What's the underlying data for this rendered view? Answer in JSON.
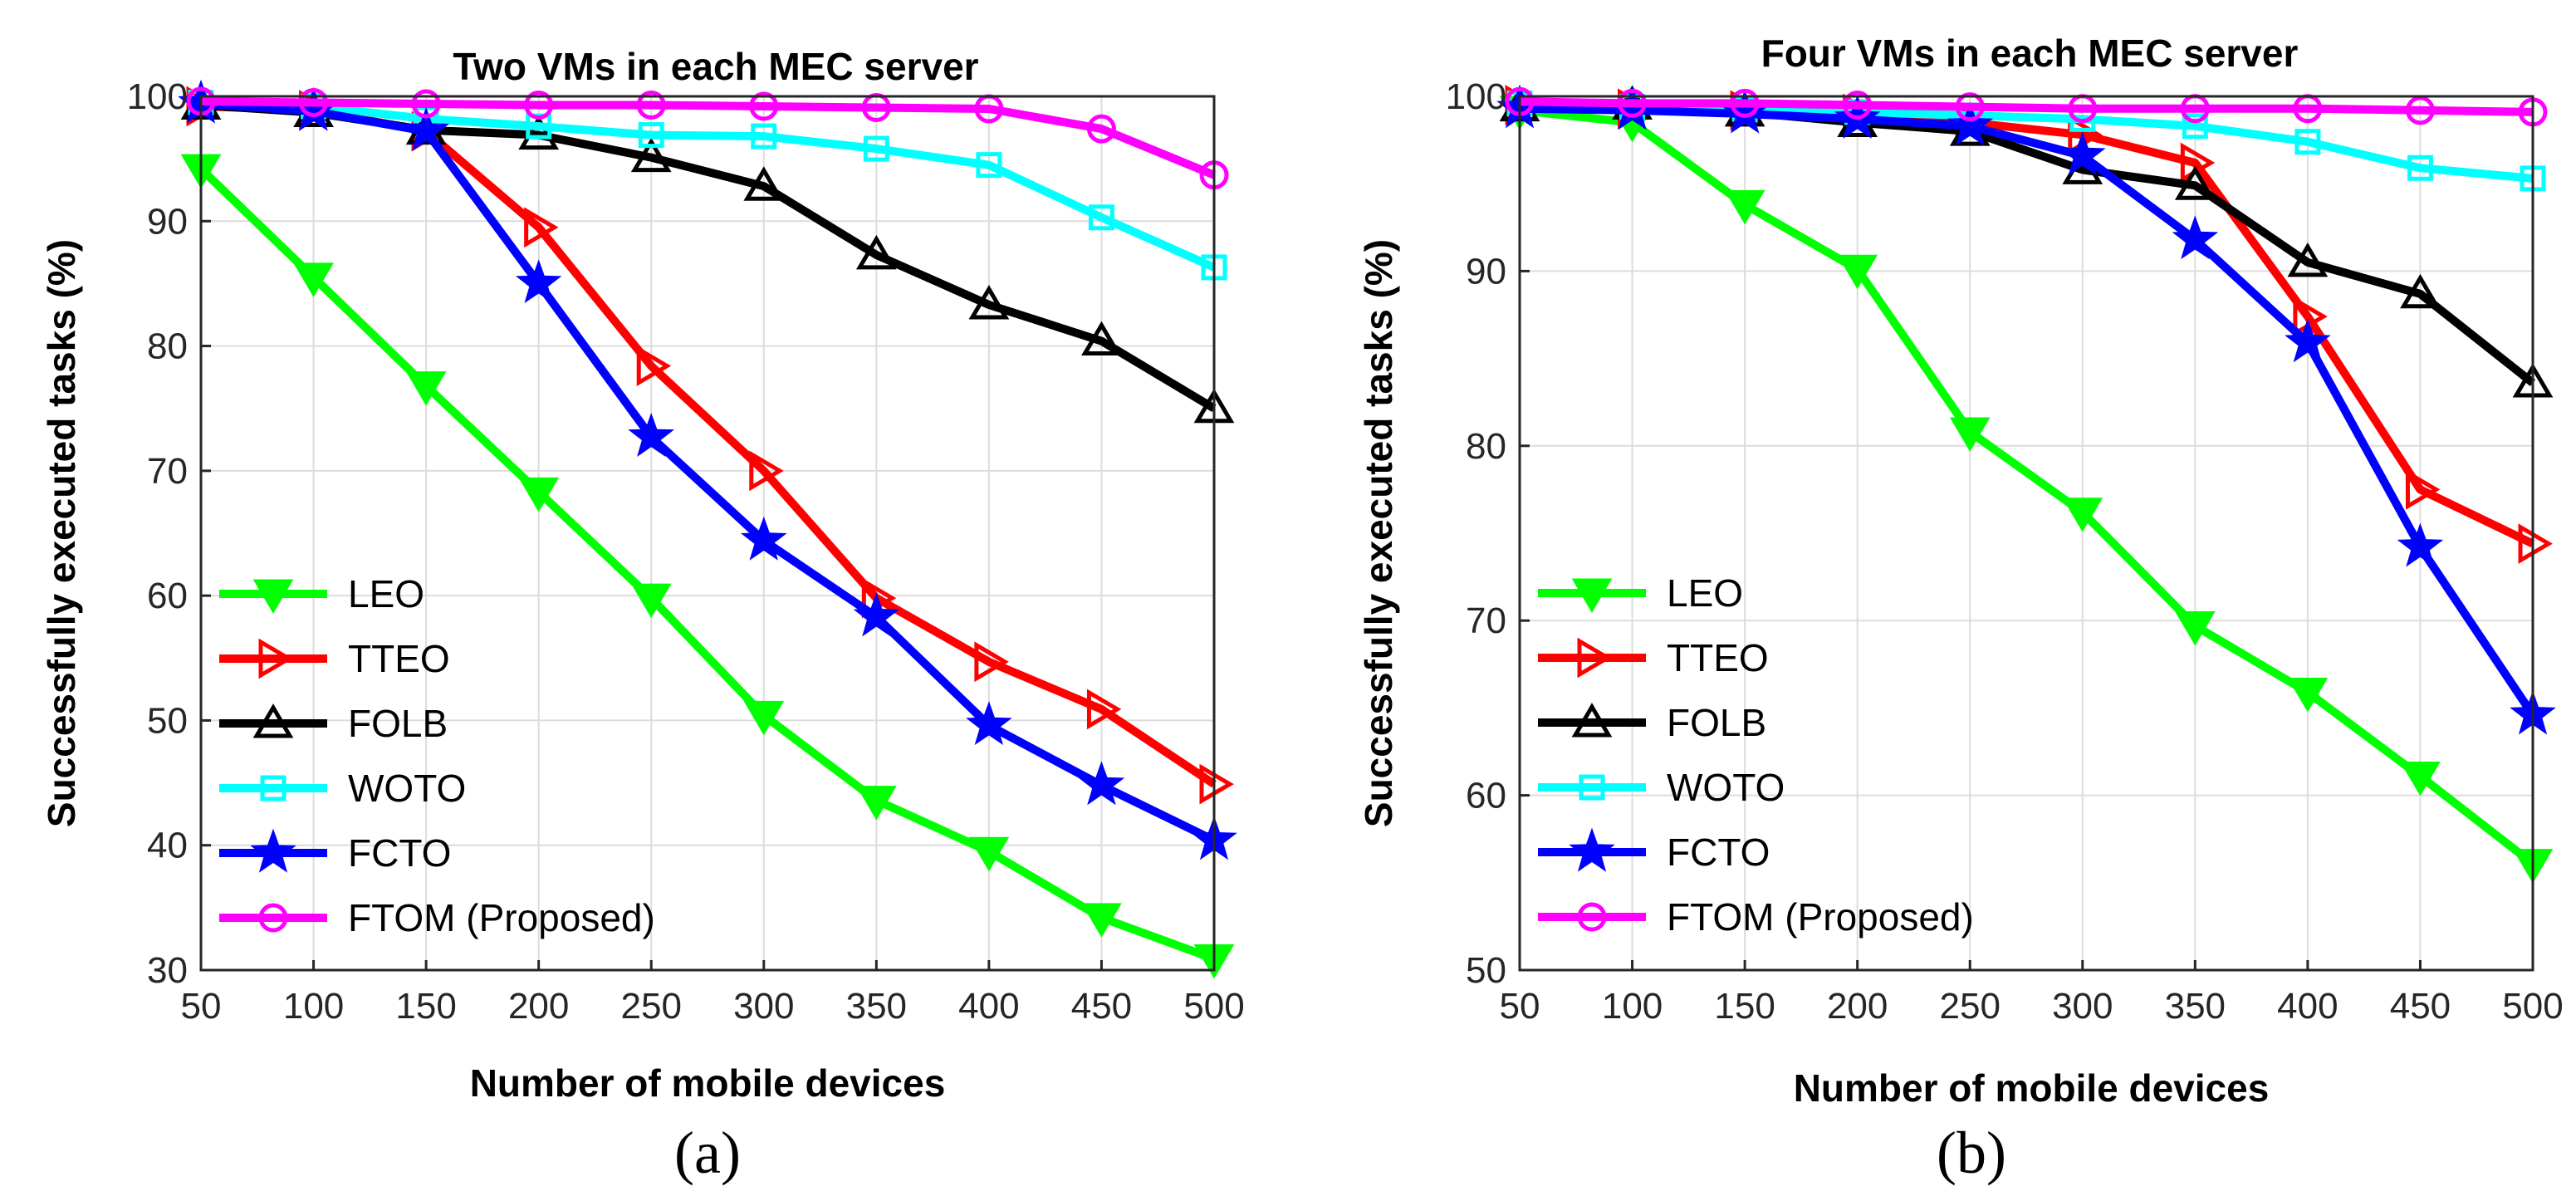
{
  "colors": {
    "LEO": "#00ff00",
    "TTEO": "#ff0000",
    "FOLB": "#000000",
    "WOTO": "#00ffff",
    "FCTO": "#0000ff",
    "FTOM (Proposed)": "#ff00ff"
  },
  "markers": {
    "LEO": "triangle-down",
    "TTEO": "triangle-right",
    "FOLB": "triangle-up",
    "WOTO": "square",
    "FCTO": "star",
    "FTOM (Proposed)": "circle"
  },
  "chart_data": [
    {
      "type": "line",
      "panel_label": "(a)",
      "title": "Two VMs in each MEC server",
      "xlabel": "Number of mobile devices",
      "ylabel": "Successfully executed tasks (%)",
      "x": [
        50,
        100,
        150,
        200,
        250,
        300,
        350,
        400,
        450,
        500
      ],
      "xlim": [
        50,
        500
      ],
      "ylim": [
        30,
        100
      ],
      "xticks": [
        "50",
        "100",
        "150",
        "200",
        "250",
        "300",
        "350",
        "400",
        "450",
        "500"
      ],
      "yticks": [
        "30",
        "40",
        "50",
        "60",
        "70",
        "80",
        "90",
        "100"
      ],
      "ytick_values": [
        30,
        40,
        50,
        60,
        70,
        80,
        90,
        100
      ],
      "grid": true,
      "legend_position": "lower-left",
      "series": [
        {
          "name": "LEO",
          "values": [
            94.2,
            85.5,
            76.8,
            68.3,
            59.8,
            50.4,
            43.6,
            39.5,
            34.2,
            30.9
          ]
        },
        {
          "name": "TTEO",
          "values": [
            99.2,
            98.9,
            97.2,
            89.5,
            78.4,
            70.0,
            59.8,
            54.7,
            50.9,
            44.9
          ]
        },
        {
          "name": "FOLB",
          "values": [
            99.3,
            98.7,
            97.3,
            96.9,
            95.1,
            92.8,
            87.3,
            83.3,
            80.4,
            75.0
          ]
        },
        {
          "name": "WOTO",
          "values": [
            99.5,
            99.2,
            98.2,
            97.6,
            96.9,
            96.8,
            95.8,
            94.5,
            90.3,
            86.3
          ]
        },
        {
          "name": "FCTO",
          "values": [
            99.4,
            98.8,
            97.2,
            85.0,
            72.7,
            64.4,
            58.3,
            49.6,
            44.8,
            40.4
          ]
        },
        {
          "name": "FTOM (Proposed)",
          "values": [
            99.6,
            99.5,
            99.4,
            99.3,
            99.3,
            99.2,
            99.1,
            99.0,
            97.4,
            93.7
          ]
        }
      ]
    },
    {
      "type": "line",
      "panel_label": "(b)",
      "title": "Four VMs in each MEC server",
      "xlabel": "Number of mobile devices",
      "ylabel": "Successfully executed tasks (%)",
      "x": [
        50,
        100,
        150,
        200,
        250,
        300,
        350,
        400,
        450,
        500
      ],
      "xlim": [
        50,
        500
      ],
      "ylim": [
        50,
        100
      ],
      "xticks": [
        "50",
        "100",
        "150",
        "200",
        "250",
        "300",
        "350",
        "400",
        "450",
        "500"
      ],
      "yticks": [
        "50",
        "60",
        "70",
        "80",
        "90",
        "100"
      ],
      "ytick_values": [
        50,
        60,
        70,
        80,
        90,
        100
      ],
      "grid": true,
      "legend_position": "lower-left",
      "series": [
        {
          "name": "LEO",
          "values": [
            99.2,
            98.5,
            93.8,
            90.1,
            80.8,
            76.2,
            69.7,
            65.9,
            61.1,
            56.1
          ]
        },
        {
          "name": "TTEO",
          "values": [
            99.5,
            99.3,
            99.2,
            99.0,
            98.5,
            97.8,
            96.2,
            87.4,
            77.5,
            74.4
          ]
        },
        {
          "name": "FOLB",
          "values": [
            99.4,
            99.5,
            99.1,
            98.5,
            98.0,
            95.8,
            94.9,
            90.5,
            88.7,
            83.6
          ]
        },
        {
          "name": "WOTO",
          "values": [
            99.6,
            99.4,
            99.3,
            99.1,
            98.9,
            98.7,
            98.3,
            97.4,
            95.9,
            95.3
          ]
        },
        {
          "name": "FCTO",
          "values": [
            99.3,
            99.2,
            99.0,
            98.7,
            98.3,
            96.6,
            91.8,
            85.9,
            74.2,
            64.6
          ]
        },
        {
          "name": "FTOM (Proposed)",
          "values": [
            99.7,
            99.6,
            99.6,
            99.5,
            99.4,
            99.3,
            99.3,
            99.3,
            99.2,
            99.1
          ]
        }
      ]
    }
  ]
}
